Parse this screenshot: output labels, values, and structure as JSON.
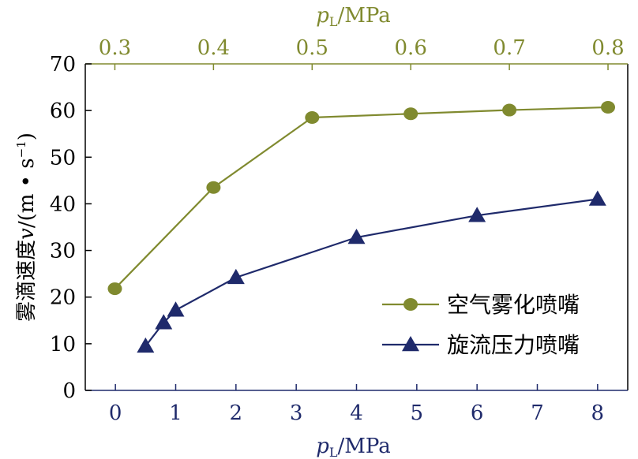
{
  "chart_data": {
    "type": "line",
    "top_axis": {
      "label_var": "p",
      "label_sub": "L",
      "label_unit": "/MPa",
      "range": [
        0.27,
        0.82
      ],
      "ticks": [
        0.3,
        0.4,
        0.5,
        0.6,
        0.7,
        0.8
      ],
      "tick_labels": [
        "0.3",
        "0.4",
        "0.5",
        "0.6",
        "0.7",
        "0.8"
      ],
      "color": "#808a2f"
    },
    "bottom_axis": {
      "label_var": "p",
      "label_sub": "L",
      "label_unit": "/MPa",
      "range": [
        -0.5,
        8.5
      ],
      "ticks": [
        0,
        1,
        2,
        3,
        4,
        5,
        6,
        7,
        8
      ],
      "tick_labels": [
        "0",
        "1",
        "2",
        "3",
        "4",
        "5",
        "6",
        "7",
        "8"
      ],
      "color": "#1f2a6b"
    },
    "y_axis": {
      "label_text": "雾滴速度",
      "label_var": "v",
      "label_unit": "/(m • s",
      "label_sup": "−1",
      "label_close": ")",
      "range": [
        0,
        70
      ],
      "ticks": [
        0,
        10,
        20,
        30,
        40,
        50,
        60,
        70
      ],
      "tick_labels": [
        "0",
        "10",
        "20",
        "30",
        "40",
        "50",
        "60",
        "70"
      ]
    },
    "series": [
      {
        "name": "空气雾化喷嘴",
        "axis": "top",
        "marker": "circle",
        "color": "#808a2f",
        "x": [
          0.3,
          0.4,
          0.5,
          0.6,
          0.7,
          0.8
        ],
        "y": [
          21.8,
          43.5,
          58.5,
          59.3,
          60.1,
          60.7
        ]
      },
      {
        "name": "旋流压力喷嘴",
        "axis": "bottom",
        "marker": "triangle",
        "color": "#1f2a6b",
        "x": [
          0.5,
          0.8,
          1.0,
          2.0,
          4.0,
          6.0,
          8.0
        ],
        "y": [
          9.5,
          14.5,
          17.2,
          24.2,
          32.8,
          37.5,
          41.0
        ]
      }
    ],
    "legend_position": "bottom-right",
    "grid": false
  }
}
